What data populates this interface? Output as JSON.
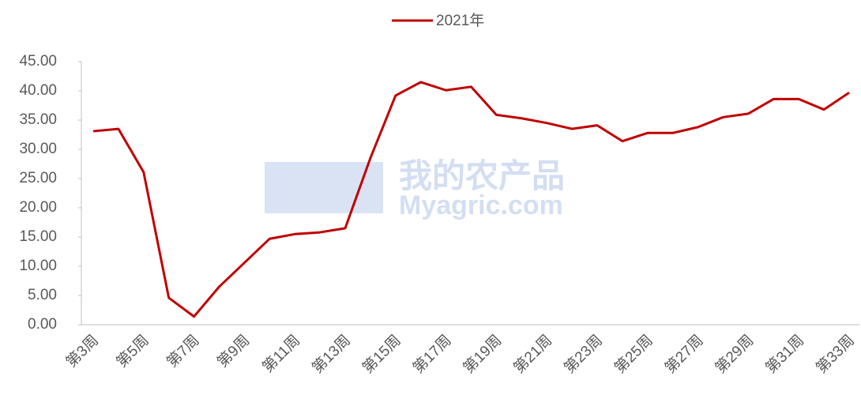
{
  "chart_data": {
    "type": "line",
    "watermark": [
      "我的农产品",
      "Myagric.com"
    ],
    "categories": [
      "第3周",
      null,
      "第5周",
      null,
      "第7周",
      null,
      "第9周",
      null,
      "第11周",
      null,
      "第13周",
      null,
      "第15周",
      null,
      "第17周",
      null,
      "第19周",
      null,
      "第21周",
      null,
      "第23周",
      null,
      "第25周",
      null,
      "第27周",
      null,
      "第29周",
      null,
      "第31周",
      null,
      "第33周"
    ],
    "series": [
      {
        "name": "2021年",
        "color": "#c00000",
        "values": [
          33.1,
          33.5,
          26.1,
          4.6,
          1.4,
          6.5,
          10.6,
          14.7,
          15.5,
          15.8,
          16.5,
          28.5,
          39.2,
          41.5,
          40.1,
          40.7,
          35.9,
          35.3,
          34.5,
          33.5,
          34.1,
          31.4,
          32.8,
          32.8,
          33.8,
          35.5,
          36.1,
          38.6,
          38.6,
          36.8,
          39.7
        ]
      }
    ],
    "ylim": [
      0,
      45
    ],
    "yticks": [
      {
        "value": 0,
        "label": "0.00"
      },
      {
        "value": 5,
        "label": "5.00"
      },
      {
        "value": 10,
        "label": "10.00"
      },
      {
        "value": 15,
        "label": "15.00"
      },
      {
        "value": 20,
        "label": "20.00"
      },
      {
        "value": 25,
        "label": "25.00"
      },
      {
        "value": 30,
        "label": "30.00"
      },
      {
        "value": 35,
        "label": "35.00"
      },
      {
        "value": 40,
        "label": "40.00"
      },
      {
        "value": 45,
        "label": "45.00"
      }
    ],
    "legend": "top"
  }
}
